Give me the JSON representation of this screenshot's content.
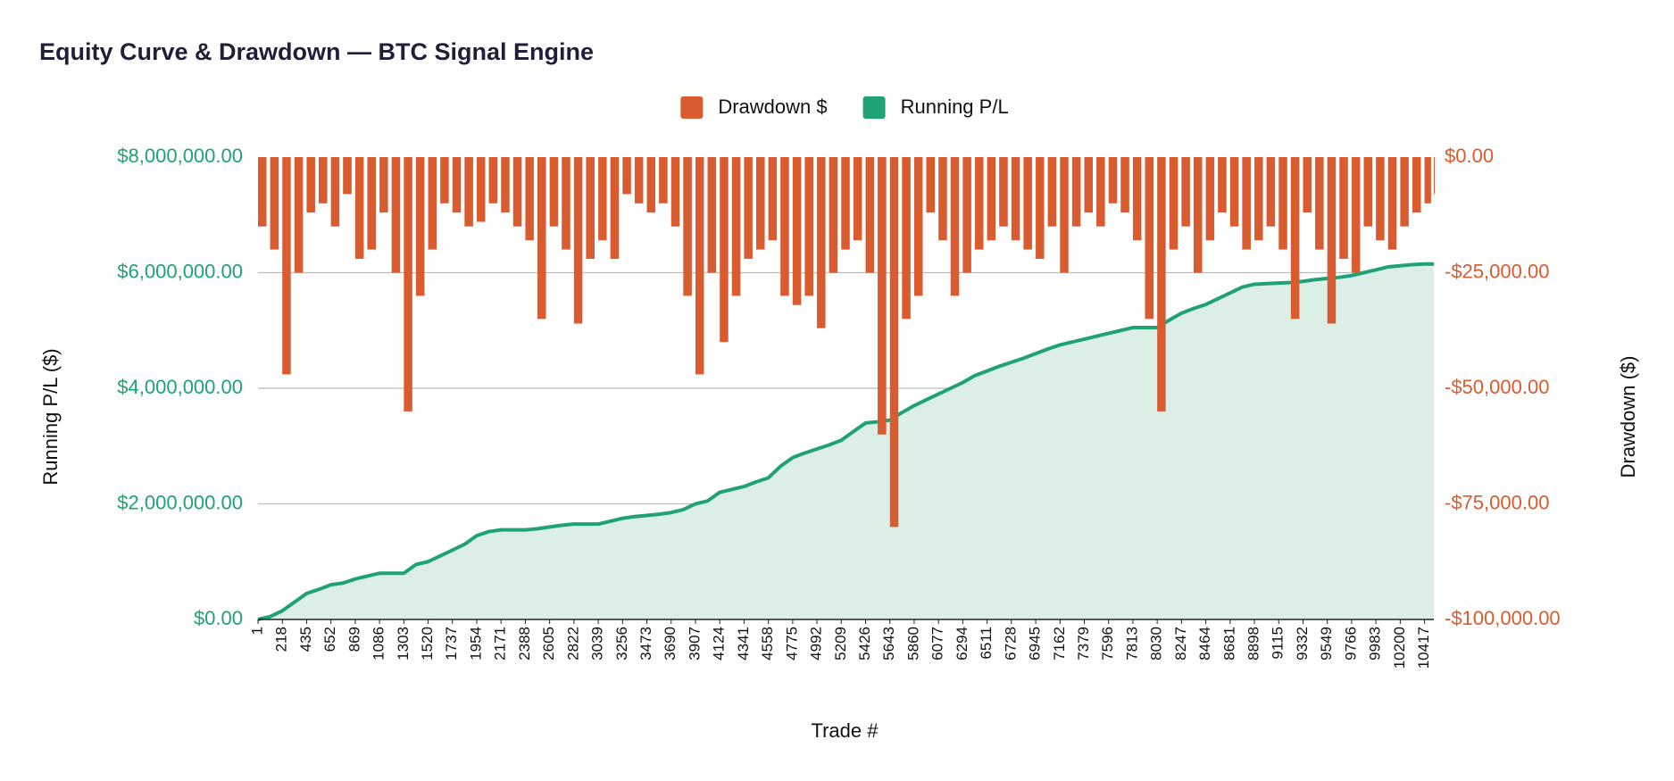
{
  "chart_data": {
    "type": "bar-line",
    "title": "Equity Curve & Drawdown — BTC Signal Engine",
    "xlabel": "Trade #",
    "ylabel": "Running P/L ($)",
    "y2label": "Drawdown ($)",
    "x": [
      1,
      109,
      218,
      326,
      435,
      543,
      652,
      760,
      869,
      977,
      1086,
      1194,
      1303,
      1411,
      1520,
      1628,
      1737,
      1845,
      1954,
      2062,
      2171,
      2279,
      2388,
      2496,
      2605,
      2713,
      2822,
      2930,
      3039,
      3147,
      3256,
      3364,
      3473,
      3581,
      3690,
      3798,
      3907,
      4015,
      4124,
      4232,
      4341,
      4449,
      4558,
      4666,
      4775,
      4883,
      4992,
      5100,
      5209,
      5317,
      5426,
      5534,
      5643,
      5751,
      5860,
      5968,
      6077,
      6185,
      6294,
      6402,
      6511,
      6619,
      6728,
      6836,
      6945,
      7053,
      7162,
      7270,
      7379,
      7487,
      7596,
      7704,
      7813,
      7921,
      8030,
      8138,
      8247,
      8355,
      8464,
      8572,
      8681,
      8789,
      8898,
      9006,
      9115,
      9223,
      9332,
      9440,
      9549,
      9657,
      9766,
      9874,
      9983,
      10091,
      10200,
      10308,
      10417,
      10500
    ],
    "series": [
      {
        "name": "Drawdown $",
        "color": "#d95b30",
        "axis": "y2",
        "style": "bar",
        "values": [
          -15000,
          -20000,
          -47000,
          -25000,
          -12000,
          -10000,
          -15000,
          -8000,
          -22000,
          -20000,
          -12000,
          -25000,
          -55000,
          -30000,
          -20000,
          -10000,
          -12000,
          -15000,
          -14000,
          -10000,
          -12000,
          -15000,
          -18000,
          -35000,
          -15000,
          -20000,
          -36000,
          -22000,
          -18000,
          -22000,
          -8000,
          -10000,
          -12000,
          -10000,
          -15000,
          -30000,
          -47000,
          -25000,
          -40000,
          -30000,
          -22000,
          -20000,
          -18000,
          -30000,
          -32000,
          -30000,
          -37000,
          -25000,
          -20000,
          -18000,
          -25000,
          -60000,
          -80000,
          -35000,
          -30000,
          -12000,
          -18000,
          -30000,
          -25000,
          -20000,
          -18000,
          -15000,
          -18000,
          -20000,
          -22000,
          -15000,
          -25000,
          -15000,
          -12000,
          -15000,
          -10000,
          -12000,
          -18000,
          -35000,
          -55000,
          -20000,
          -15000,
          -25000,
          -18000,
          -12000,
          -15000,
          -20000,
          -18000,
          -15000,
          -20000,
          -35000,
          -12000,
          -20000,
          -36000,
          -22000,
          -25000,
          -15000,
          -18000,
          -20000,
          -15000,
          -12000,
          -10000,
          -8000
        ]
      },
      {
        "name": "Running P/L",
        "color": "#1fa274",
        "fill": "#dcefe7",
        "style": "area",
        "values": [
          0,
          50000,
          150000,
          300000,
          450000,
          520000,
          600000,
          630000,
          700000,
          750000,
          800000,
          800000,
          800000,
          950000,
          1000000,
          1100000,
          1200000,
          1300000,
          1450000,
          1520000,
          1550000,
          1550000,
          1550000,
          1570000,
          1600000,
          1630000,
          1650000,
          1650000,
          1650000,
          1700000,
          1750000,
          1780000,
          1800000,
          1820000,
          1850000,
          1900000,
          2000000,
          2050000,
          2200000,
          2250000,
          2300000,
          2380000,
          2450000,
          2650000,
          2800000,
          2880000,
          2950000,
          3020000,
          3100000,
          3250000,
          3400000,
          3420000,
          3450000,
          3580000,
          3700000,
          3800000,
          3900000,
          4000000,
          4100000,
          4220000,
          4300000,
          4380000,
          4450000,
          4520000,
          4600000,
          4680000,
          4750000,
          4800000,
          4850000,
          4900000,
          4950000,
          5000000,
          5050000,
          5050000,
          5050000,
          5180000,
          5300000,
          5380000,
          5450000,
          5550000,
          5650000,
          5750000,
          5800000,
          5810000,
          5820000,
          5830000,
          5850000,
          5880000,
          5900000,
          5920000,
          5950000,
          6000000,
          6050000,
          6100000,
          6120000,
          6140000,
          6150000,
          6150000
        ]
      }
    ],
    "xlim": [
      1,
      10500
    ],
    "xticks": [
      1,
      218,
      435,
      652,
      869,
      1086,
      1303,
      1520,
      1737,
      1954,
      2171,
      2388,
      2605,
      2822,
      3039,
      3256,
      3473,
      3690,
      3907,
      4124,
      4341,
      4558,
      4775,
      4992,
      5209,
      5426,
      5643,
      5860,
      6077,
      6294,
      6511,
      6728,
      6945,
      7162,
      7379,
      7596,
      7813,
      8030,
      8247,
      8464,
      8681,
      8898,
      9115,
      9332,
      9549,
      9766,
      9983,
      10200,
      10417
    ],
    "ylim": [
      0,
      8000000
    ],
    "yticks": [
      {
        "value": 0,
        "label": "$0.00"
      },
      {
        "value": 2000000,
        "label": "$2,000,000.00"
      },
      {
        "value": 4000000,
        "label": "$4,000,000.00"
      },
      {
        "value": 6000000,
        "label": "$6,000,000.00"
      },
      {
        "value": 8000000,
        "label": "$8,000,000.00"
      }
    ],
    "y2lim": [
      -100000,
      0
    ],
    "y2ticks": [
      {
        "value": -100000,
        "label": "-$100,000.00"
      },
      {
        "value": -75000,
        "label": "-$75,000.00"
      },
      {
        "value": -50000,
        "label": "-$50,000.00"
      },
      {
        "value": -25000,
        "label": "-$25,000.00"
      },
      {
        "value": 0,
        "label": "$0.00"
      }
    ],
    "grid": true,
    "legend": "top"
  }
}
